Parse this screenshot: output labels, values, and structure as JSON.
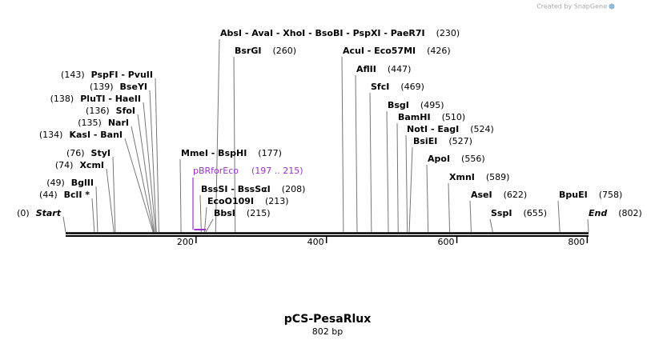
{
  "credit": "Created by SnapGene",
  "title": "pCS-PesaRlux",
  "sequence_length": {
    "value": 802,
    "label": "802 bp"
  },
  "ruler_ticks": [
    200,
    400,
    600,
    800
  ],
  "sites": [
    {
      "name": "AbsI  - AvaI  - XhoI  - BsoBI  - PspXI  - PaeR7I",
      "pos": {
        "value": 230,
        "label": "(230)"
      }
    },
    {
      "name": "BsrGI",
      "pos": {
        "value": 260,
        "label": "(260)"
      }
    },
    {
      "name": "AcuI  - Eco57MI",
      "pos": {
        "value": 426,
        "label": "(426)"
      }
    },
    {
      "name": "AflII",
      "pos": {
        "value": 447,
        "label": "(447)"
      }
    },
    {
      "name": "SfcI",
      "pos": {
        "value": 469,
        "label": "(469)"
      }
    },
    {
      "name": "BsgI",
      "pos": {
        "value": 495,
        "label": "(495)"
      }
    },
    {
      "name": "BamHI",
      "pos": {
        "value": 510,
        "label": "(510)"
      }
    },
    {
      "name": "NotI  - EagI",
      "pos": {
        "value": 524,
        "label": "(524)"
      }
    },
    {
      "name": "BsiEI",
      "pos": {
        "value": 527,
        "label": "(527)"
      }
    },
    {
      "name": "ApoI",
      "pos": {
        "value": 556,
        "label": "(556)"
      }
    },
    {
      "name": "XmnI",
      "pos": {
        "value": 589,
        "label": "(589)"
      }
    },
    {
      "name": "AseI",
      "pos": {
        "value": 622,
        "label": "(622)"
      }
    },
    {
      "name": "BpuEI",
      "pos": {
        "value": 758,
        "label": "(758)"
      }
    },
    {
      "name": "SspI",
      "pos": {
        "value": 655,
        "label": "(655)"
      }
    },
    {
      "name": "End",
      "pos": {
        "value": 802,
        "label": "(802)"
      }
    },
    {
      "name": "MmeI  - BspHI",
      "pos": {
        "value": 177,
        "label": "(177)"
      }
    },
    {
      "name": "BssSI  - BssSαI",
      "pos": {
        "value": 208,
        "label": "(208)"
      }
    },
    {
      "name": "EcoO109I",
      "pos": {
        "value": 213,
        "label": "(213)"
      }
    },
    {
      "name": "BbsI",
      "pos": {
        "value": 215,
        "label": "(215)"
      }
    },
    {
      "name": "PspFI  - PvuII",
      "pos": {
        "value": 143,
        "label": "(143)"
      }
    },
    {
      "name": "BseYI",
      "pos": {
        "value": 139,
        "label": "(139)"
      }
    },
    {
      "name": "PluTI  - HaeII",
      "pos": {
        "value": 138,
        "label": "(138)"
      }
    },
    {
      "name": "SfoI",
      "pos": {
        "value": 136,
        "label": "(136)"
      }
    },
    {
      "name": "NarI",
      "pos": {
        "value": 135,
        "label": "(135)"
      }
    },
    {
      "name": "KasI  - BanI",
      "pos": {
        "value": 134,
        "label": "(134)"
      }
    },
    {
      "name": "StyI",
      "pos": {
        "value": 76,
        "label": "(76)"
      }
    },
    {
      "name": "XcmI",
      "pos": {
        "value": 74,
        "label": "(74)"
      }
    },
    {
      "name": "BglII",
      "pos": {
        "value": 49,
        "label": "(49)"
      }
    },
    {
      "name": "BclI *",
      "pos": {
        "value": 44,
        "label": "(44)"
      }
    },
    {
      "name": "Start",
      "pos": {
        "value": 0,
        "label": "(0)"
      }
    }
  ],
  "primers": [
    {
      "name": "pBRforEco",
      "range": {
        "start": 197,
        "end": 215,
        "label": "(197 .. 215)"
      }
    }
  ]
}
